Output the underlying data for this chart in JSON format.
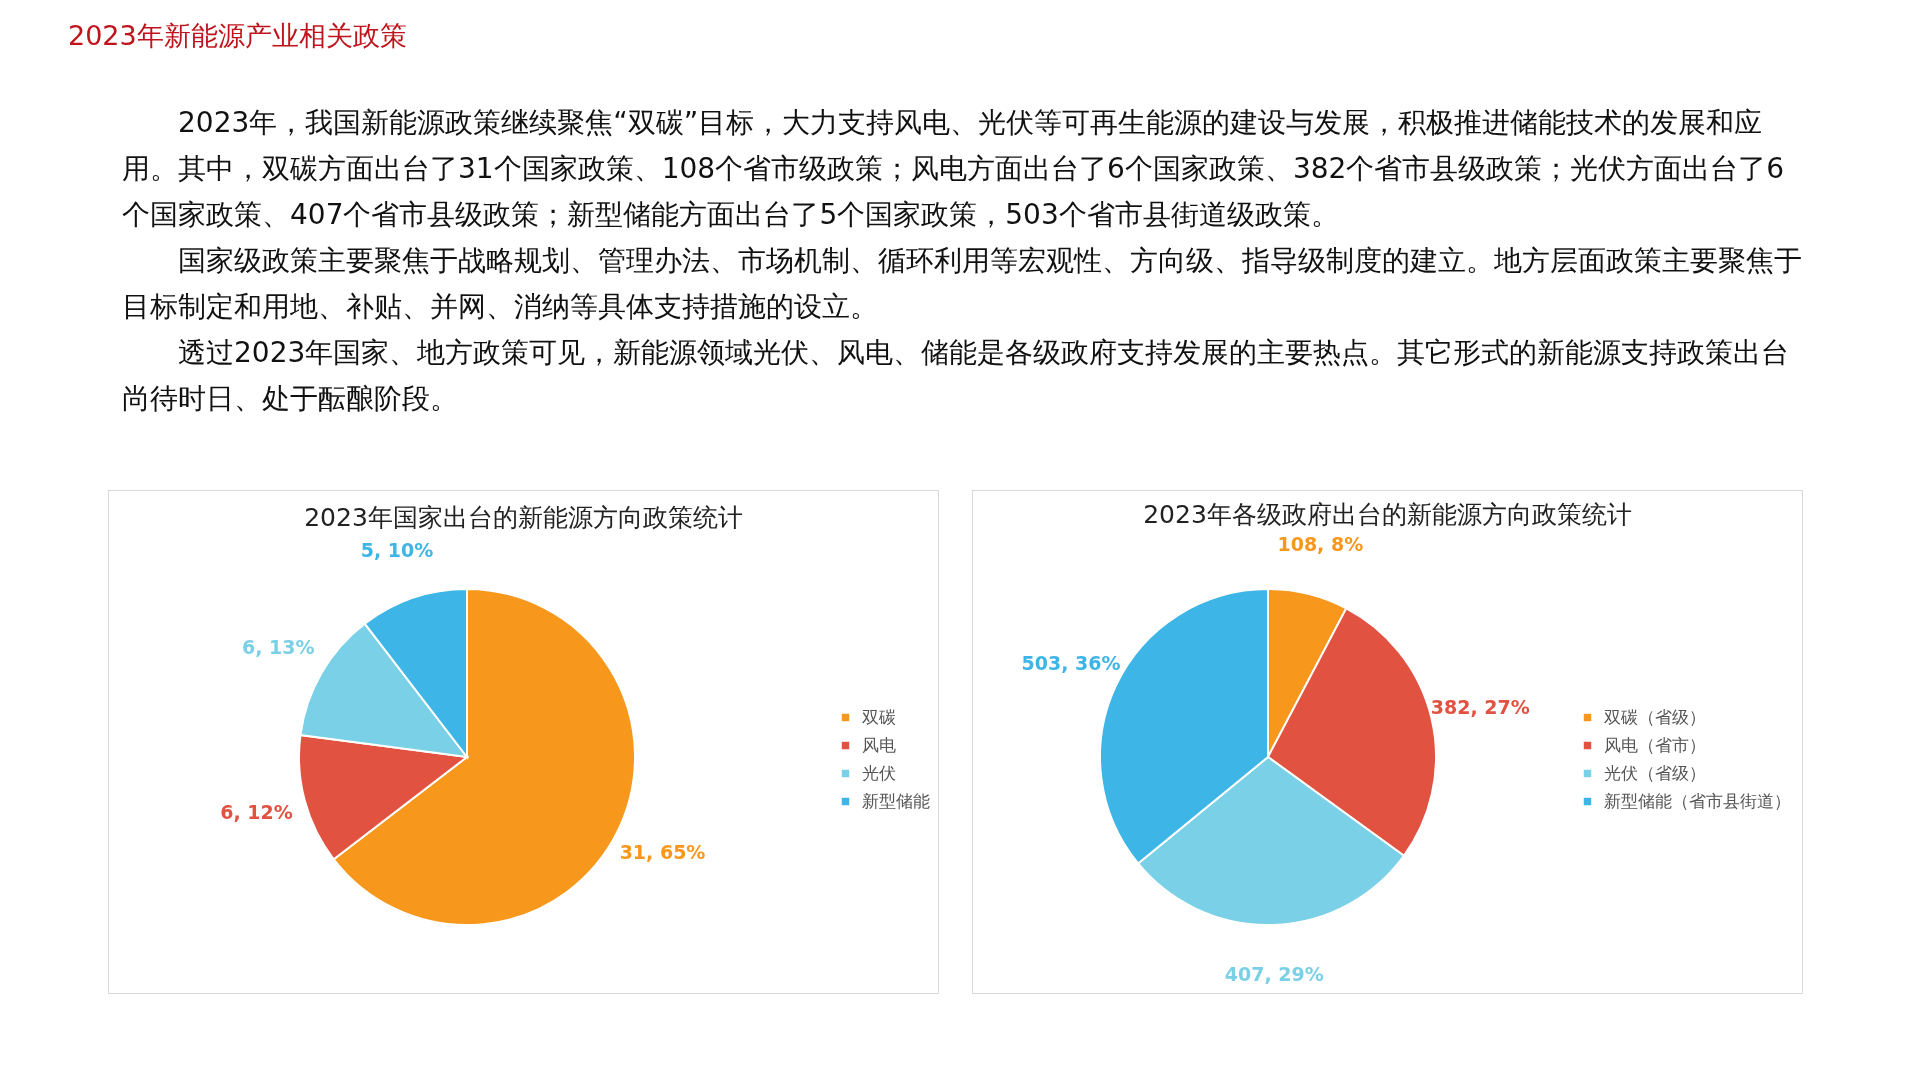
{
  "chart_data": [
    {
      "type": "other",
      "title": "2023年新能源产业相关政策",
      "annotations": [
        "2023年，我国新能源政策继续聚焦“双碳”目标，大力支持风电、光伏等可再生能源的建设与发展，积极推进储能技术的发展和应用。其中，双碳方面出台了31个国家政策、108个省市级政策；风电方面出台了6个国家政策、382个省市县级政策；光伏方面出台了6个国家政策、407个省市县级政策；新型储能方面出台了5个国家政策，503个省市县街道级政策。",
        "国家级政策主要聚焦于战略规划、管理办法、市场机制、循环利用等宏观性、方向级、指导级制度的建立。地方层面政策主要聚焦于目标制定和用地、补贴、并网、消纳等具体支持措施的设立。",
        "透过2023年国家、地方政策可见，新能源领域光伏、风电、储能是各级政府支持发展的主要热点。其它形式的新能源支持政策出台尚待时日、处于酝酿阶段。"
      ]
    },
    {
      "type": "pie",
      "title": "2023年国家出台的新能源方向政策统计",
      "categories": [
        "双碳",
        "风电",
        "光伏",
        "新型储能"
      ],
      "values": [
        31,
        6,
        6,
        5
      ],
      "colors": [
        "#f7981d",
        "#e15241",
        "#7ad0e6",
        "#3db5e6"
      ],
      "value_labels": [
        "31, 65%",
        "6, 12%",
        "6, 13%",
        "5, 10%"
      ],
      "legend": "right"
    },
    {
      "type": "pie",
      "title": "2023年各级政府出台的新能源方向政策统计",
      "categories": [
        "双碳（省级）",
        "风电（省市）",
        "光伏（省级）",
        "新型储能（省市县街道）"
      ],
      "values": [
        108,
        382,
        407,
        503
      ],
      "colors": [
        "#f7981d",
        "#e15241",
        "#7ad0e6",
        "#3db5e6"
      ],
      "value_labels": [
        "108, 8%",
        "382, 27%",
        "407, 29%",
        "503, 36%"
      ],
      "legend": "right"
    }
  ]
}
